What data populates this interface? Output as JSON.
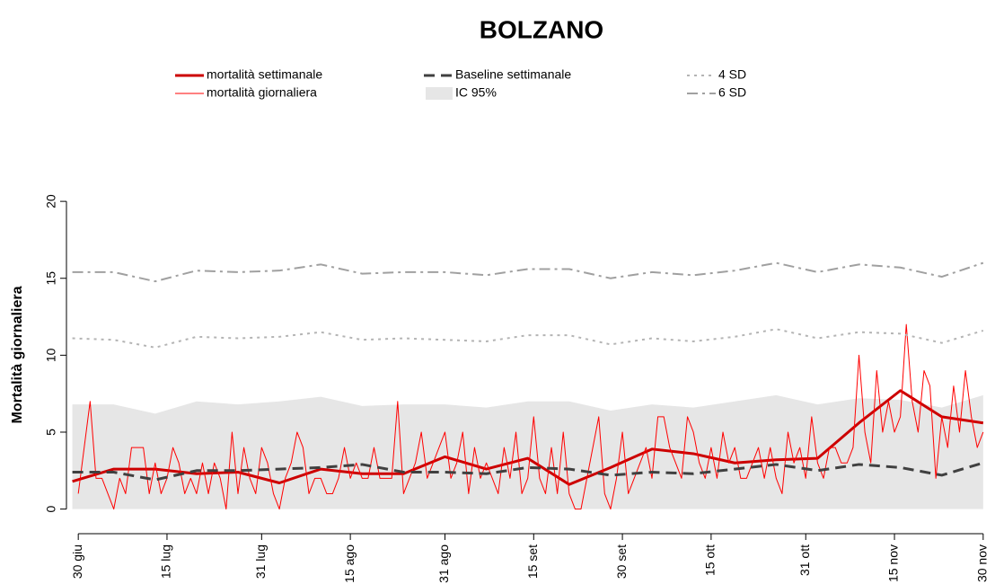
{
  "chart_data": {
    "type": "line",
    "title": "BOLZANO",
    "y_label": "Mortalità giornaliera",
    "xlim": [
      -2,
      155
    ],
    "ylim": [
      -1.6,
      21
    ],
    "xticks": [
      {
        "value": 0,
        "label": "30 giu"
      },
      {
        "value": 15,
        "label": "15 lug"
      },
      {
        "value": 31,
        "label": "31 lug"
      },
      {
        "value": 46,
        "label": "15 ago"
      },
      {
        "value": 62,
        "label": "31 ago"
      },
      {
        "value": 77,
        "label": "15 set"
      },
      {
        "value": 92,
        "label": "30 set"
      },
      {
        "value": 107,
        "label": "15 ott"
      },
      {
        "value": 123,
        "label": "31 ott"
      },
      {
        "value": 138,
        "label": "15 nov"
      },
      {
        "value": 153,
        "label": "30 nov"
      }
    ],
    "yticks": [
      0,
      5,
      10,
      15,
      20
    ],
    "series": [
      {
        "name": "mortalità settimanale",
        "color": "#cc0000",
        "style": "solid",
        "width": 3,
        "x": [
          -1,
          6,
          13,
          20,
          27,
          34,
          41,
          48,
          55,
          62,
          69,
          76,
          83,
          90,
          97,
          104,
          111,
          118,
          125,
          132,
          139,
          146,
          153
        ],
        "values": [
          1.8,
          2.6,
          2.6,
          2.3,
          2.4,
          1.7,
          2.6,
          2.3,
          2.3,
          3.4,
          2.6,
          3.3,
          1.6,
          2.7,
          3.9,
          3.6,
          3.0,
          3.2,
          3.3,
          5.6,
          7.7,
          6.0,
          5.6
        ]
      },
      {
        "name": "mortalità giornaliera",
        "color": "#ff0000",
        "style": "solid",
        "width": 1,
        "x": [
          0,
          1,
          2,
          3,
          4,
          5,
          6,
          7,
          8,
          9,
          10,
          11,
          12,
          13,
          14,
          15,
          16,
          17,
          18,
          19,
          20,
          21,
          22,
          23,
          24,
          25,
          26,
          27,
          28,
          29,
          30,
          31,
          32,
          33,
          34,
          35,
          36,
          37,
          38,
          39,
          40,
          41,
          42,
          43,
          44,
          45,
          46,
          47,
          48,
          49,
          50,
          51,
          52,
          53,
          54,
          55,
          56,
          57,
          58,
          59,
          60,
          61,
          62,
          63,
          64,
          65,
          66,
          67,
          68,
          69,
          70,
          71,
          72,
          73,
          74,
          75,
          76,
          77,
          78,
          79,
          80,
          81,
          82,
          83,
          84,
          85,
          86,
          87,
          88,
          89,
          90,
          91,
          92,
          93,
          94,
          95,
          96,
          97,
          98,
          99,
          100,
          101,
          102,
          103,
          104,
          105,
          106,
          107,
          108,
          109,
          110,
          111,
          112,
          113,
          114,
          115,
          116,
          117,
          118,
          119,
          120,
          121,
          122,
          123,
          124,
          125,
          126,
          127,
          128,
          129,
          130,
          131,
          132,
          133,
          134,
          135,
          136,
          137,
          138,
          139,
          140,
          141,
          142,
          143,
          144,
          145,
          146,
          147,
          148,
          149,
          150,
          151,
          152,
          153
        ],
        "values": [
          1,
          4,
          7,
          2,
          2,
          1,
          0,
          2,
          1,
          4,
          4,
          4,
          1,
          3,
          1,
          2,
          4,
          3,
          1,
          2,
          1,
          3,
          1,
          3,
          2,
          0,
          5,
          1,
          4,
          2,
          1,
          4,
          3,
          1,
          0,
          2,
          3,
          5,
          4,
          1,
          2,
          2,
          1,
          1,
          2,
          4,
          2,
          3,
          2,
          2,
          4,
          2,
          2,
          2,
          7,
          1,
          2,
          3,
          5,
          2,
          3,
          4,
          5,
          2,
          3,
          5,
          1,
          4,
          2,
          3,
          2,
          1,
          4,
          2,
          5,
          1,
          2,
          6,
          2,
          1,
          4,
          1,
          5,
          1,
          0,
          0,
          2,
          4,
          6,
          1,
          0,
          2,
          5,
          1,
          2,
          3,
          4,
          2,
          6,
          6,
          4,
          3,
          2,
          6,
          5,
          3,
          2,
          4,
          2,
          5,
          3,
          4,
          2,
          2,
          3,
          4,
          2,
          4,
          2,
          1,
          5,
          3,
          4,
          2,
          6,
          3,
          2,
          4,
          4,
          3,
          3,
          4,
          10,
          5,
          3,
          9,
          5,
          7,
          5,
          6,
          12,
          7,
          5,
          9,
          8,
          2,
          6,
          4,
          8,
          5,
          9,
          6,
          4,
          5
        ]
      },
      {
        "name": "Baseline settimanale",
        "color": "#404040",
        "style": "dashed",
        "width": 3,
        "x": [
          -1,
          6,
          13,
          20,
          27,
          34,
          41,
          48,
          55,
          62,
          69,
          76,
          83,
          90,
          97,
          104,
          111,
          118,
          125,
          132,
          139,
          146,
          153
        ],
        "values": [
          2.4,
          2.4,
          1.9,
          2.5,
          2.5,
          2.6,
          2.7,
          2.9,
          2.4,
          2.4,
          2.3,
          2.7,
          2.6,
          2.2,
          2.4,
          2.3,
          2.6,
          2.9,
          2.5,
          2.9,
          2.7,
          2.2,
          3.0
        ]
      },
      {
        "name": "IC 95%",
        "color": "#e6e6e6",
        "style": "area",
        "width": 0,
        "x": [
          -1,
          6,
          13,
          20,
          27,
          34,
          41,
          48,
          55,
          62,
          69,
          76,
          83,
          90,
          97,
          104,
          111,
          118,
          125,
          132,
          139,
          146,
          153
        ],
        "values": [
          6.8,
          6.8,
          6.2,
          7.0,
          6.8,
          7.0,
          7.3,
          6.7,
          6.8,
          6.8,
          6.6,
          7.0,
          7.0,
          6.4,
          6.8,
          6.6,
          7.0,
          7.4,
          6.8,
          7.2,
          7.1,
          6.6,
          7.4
        ]
      },
      {
        "name": "4 SD",
        "color": "#b4b4b4",
        "style": "dotted",
        "width": 2,
        "x": [
          -1,
          6,
          13,
          20,
          27,
          34,
          41,
          48,
          55,
          62,
          69,
          76,
          83,
          90,
          97,
          104,
          111,
          118,
          125,
          132,
          139,
          146,
          153
        ],
        "values": [
          11.1,
          11.0,
          10.5,
          11.2,
          11.1,
          11.2,
          11.5,
          11.0,
          11.1,
          11.0,
          10.9,
          11.3,
          11.3,
          10.7,
          11.1,
          10.9,
          11.2,
          11.7,
          11.1,
          11.5,
          11.4,
          10.8,
          11.6
        ]
      },
      {
        "name": "6 SD",
        "color": "#a0a0a0",
        "style": "dashdot",
        "width": 2,
        "x": [
          -1,
          6,
          13,
          20,
          27,
          34,
          41,
          48,
          55,
          62,
          69,
          76,
          83,
          90,
          97,
          104,
          111,
          118,
          125,
          132,
          139,
          146,
          153
        ],
        "values": [
          15.4,
          15.4,
          14.8,
          15.5,
          15.4,
          15.5,
          15.9,
          15.3,
          15.4,
          15.4,
          15.2,
          15.6,
          15.6,
          15.0,
          15.4,
          15.2,
          15.5,
          16.0,
          15.4,
          15.9,
          15.7,
          15.1,
          16.0
        ]
      }
    ]
  }
}
